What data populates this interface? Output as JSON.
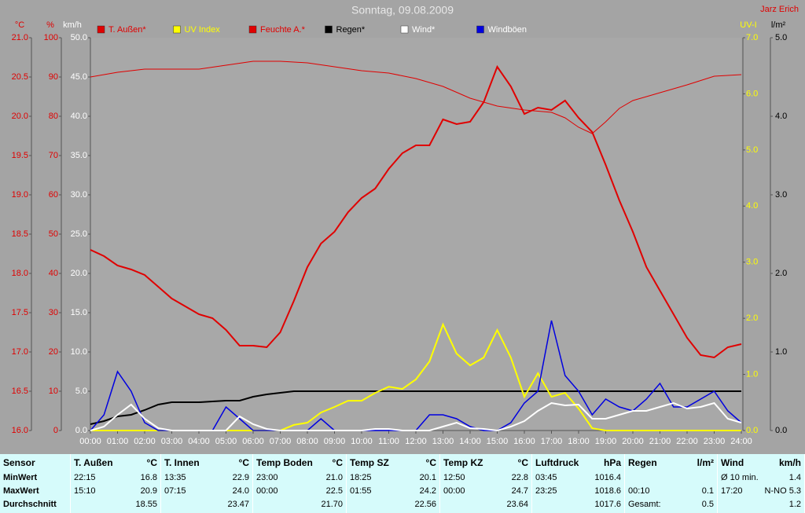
{
  "chart_data": {
    "type": "line",
    "title": "Sonntag, 09.08.2009",
    "subtitle": "Jarz Erich",
    "x": [
      0,
      0.5,
      1,
      1.5,
      2,
      2.5,
      3,
      3.5,
      4,
      4.5,
      5,
      5.5,
      6,
      6.5,
      7,
      7.5,
      8,
      8.5,
      9,
      9.5,
      10,
      10.5,
      11,
      11.5,
      12,
      12.5,
      13,
      13.5,
      14,
      14.5,
      15,
      15.5,
      16,
      16.5,
      17,
      17.5,
      18,
      18.5,
      19,
      19.5,
      20,
      20.5,
      21,
      21.5,
      22,
      22.5,
      23,
      23.5,
      24
    ],
    "xlim": [
      0,
      24
    ],
    "xticks": [
      {
        "value": 0,
        "label": "00:00"
      },
      {
        "value": 1,
        "label": "01:00"
      },
      {
        "value": 2,
        "label": "02:00"
      },
      {
        "value": 3,
        "label": "03:00"
      },
      {
        "value": 4,
        "label": "04:00"
      },
      {
        "value": 5,
        "label": "05:00"
      },
      {
        "value": 6,
        "label": "06:00"
      },
      {
        "value": 7,
        "label": "07:00"
      },
      {
        "value": 8,
        "label": "08:00"
      },
      {
        "value": 9,
        "label": "09:00"
      },
      {
        "value": 10,
        "label": "10:00"
      },
      {
        "value": 11,
        "label": "11:00"
      },
      {
        "value": 12,
        "label": "12:00"
      },
      {
        "value": 13,
        "label": "13:00"
      },
      {
        "value": 14,
        "label": "14:00"
      },
      {
        "value": 15,
        "label": "15:00"
      },
      {
        "value": 16,
        "label": "16:00"
      },
      {
        "value": 17,
        "label": "17:00"
      },
      {
        "value": 18,
        "label": "18:00"
      },
      {
        "value": 19,
        "label": "19:00"
      },
      {
        "value": 20,
        "label": "20:00"
      },
      {
        "value": 21,
        "label": "21:00"
      },
      {
        "value": 22,
        "label": "22:00"
      },
      {
        "value": 23,
        "label": "23:00"
      },
      {
        "value": 24,
        "label": "24:00"
      }
    ],
    "axes": [
      {
        "id": "temp",
        "label": "°C",
        "color": "#e00000",
        "lim": [
          16,
          21
        ],
        "ticks": [
          {
            "value": 16,
            "label": "16.0"
          },
          16.5,
          {
            "value": 17,
            "label": "17.0"
          },
          17.5,
          {
            "value": 18,
            "label": "18.0"
          },
          18.5,
          {
            "value": 19,
            "label": "19.0"
          },
          19.5,
          {
            "value": 20,
            "label": "20.0"
          },
          20.5,
          {
            "value": 21,
            "label": "21.0"
          }
        ]
      },
      {
        "id": "pct",
        "label": "%",
        "color": "#e00000",
        "lim": [
          0,
          100
        ],
        "ticks": [
          0,
          10,
          20,
          30,
          40,
          50,
          60,
          70,
          80,
          90,
          100
        ]
      },
      {
        "id": "kmh",
        "label": "km/h",
        "color": "#ffffff",
        "lim": [
          0,
          50
        ],
        "ticks": [
          {
            "value": 0,
            "label": "0.0"
          },
          {
            "value": 5,
            "label": "5.0"
          },
          {
            "value": 10,
            "label": "10.0"
          },
          {
            "value": 15,
            "label": "15.0"
          },
          {
            "value": 20,
            "label": "20.0"
          },
          {
            "value": 25,
            "label": "25.0"
          },
          {
            "value": 30,
            "label": "30.0"
          },
          {
            "value": 35,
            "label": "35.0"
          },
          {
            "value": 40,
            "label": "40.0"
          },
          {
            "value": 45,
            "label": "45.0"
          },
          {
            "value": 50,
            "label": "50.0"
          }
        ]
      },
      {
        "id": "uv",
        "label": "UV-I",
        "color": "#ffff00",
        "lim": [
          0,
          7
        ],
        "ticks": [
          {
            "value": 0,
            "label": "0.0"
          },
          {
            "value": 1,
            "label": "1.0"
          },
          {
            "value": 2,
            "label": "2.0"
          },
          {
            "value": 3,
            "label": "3.0"
          },
          {
            "value": 4,
            "label": "4.0"
          },
          {
            "value": 5,
            "label": "5.0"
          },
          {
            "value": 6,
            "label": "6.0"
          },
          {
            "value": 7,
            "label": "7.0"
          }
        ]
      },
      {
        "id": "rain",
        "label": "l/m²",
        "color": "#000000",
        "lim": [
          0,
          5
        ],
        "ticks": [
          {
            "value": 0,
            "label": "0.0"
          },
          {
            "value": 1,
            "label": "1.0"
          },
          {
            "value": 2,
            "label": "2.0"
          },
          {
            "value": 3,
            "label": "3.0"
          },
          {
            "value": 4,
            "label": "4.0"
          },
          {
            "value": 5,
            "label": "5.0"
          }
        ]
      }
    ],
    "series": [
      {
        "name": "T. Außen*",
        "color": "#e00000",
        "label_color": "#e00000",
        "axis": "temp",
        "width": 2,
        "values": [
          18.3,
          18.22,
          18.1,
          18.05,
          17.98,
          17.83,
          17.68,
          17.58,
          17.48,
          17.43,
          17.28,
          17.08,
          17.08,
          17.06,
          17.25,
          17.65,
          18.08,
          18.38,
          18.53,
          18.78,
          18.96,
          19.08,
          19.33,
          19.53,
          19.63,
          19.63,
          19.96,
          19.9,
          19.93,
          20.18,
          20.63,
          20.38,
          20.03,
          20.11,
          20.08,
          20.2,
          19.98,
          19.8,
          19.38,
          18.93,
          18.53,
          18.08,
          17.78,
          17.48,
          17.18,
          16.96,
          16.93,
          17.06,
          17.1
        ]
      },
      {
        "name": "UV Index",
        "color": "#ffff00",
        "label_color": "#ffff00",
        "axis": "uv",
        "width": 2,
        "values": [
          0,
          0,
          0,
          0,
          0,
          0,
          0,
          0,
          0,
          0,
          0,
          0,
          0,
          0,
          0,
          0.1,
          0.14,
          0.32,
          0.42,
          0.53,
          0.53,
          0.67,
          0.78,
          0.74,
          0.91,
          1.23,
          1.89,
          1.37,
          1.16,
          1.3,
          1.79,
          1.3,
          0.6,
          1.02,
          0.6,
          0.67,
          0.39,
          0.04,
          0,
          0,
          0,
          0,
          0,
          0,
          0,
          0,
          0,
          0,
          0
        ]
      },
      {
        "name": "Feuchte A.*",
        "color": "#e00000",
        "label_color": "#e00000",
        "axis": "pct",
        "width": 1,
        "values": [
          90,
          90.6,
          91.2,
          91.6,
          92,
          92,
          92,
          92,
          92,
          92.5,
          93,
          93.5,
          94,
          94,
          94,
          93.8,
          93.6,
          93.1,
          92.6,
          92.1,
          91.6,
          91.3,
          91,
          90.3,
          89.6,
          88.6,
          87.6,
          86.1,
          84.6,
          83.6,
          82.6,
          82.1,
          81.6,
          81.3,
          81,
          79.6,
          77.2,
          75.6,
          78.6,
          82,
          84,
          85,
          86,
          87,
          88,
          89.1,
          90.2,
          90.4,
          90.6
        ]
      },
      {
        "name": "Regen*",
        "color": "#000000",
        "label_color": "#000000",
        "axis": "rain",
        "width": 2,
        "values": [
          0.08,
          0.12,
          0.18,
          0.2,
          0.26,
          0.33,
          0.36,
          0.36,
          0.36,
          0.37,
          0.38,
          0.38,
          0.43,
          0.46,
          0.48,
          0.5,
          0.5,
          0.5,
          0.5,
          0.5,
          0.5,
          0.5,
          0.5,
          0.5,
          0.5,
          0.5,
          0.5,
          0.5,
          0.5,
          0.5,
          0.5,
          0.5,
          0.5,
          0.5,
          0.5,
          0.5,
          0.5,
          0.5,
          0.5,
          0.5,
          0.5,
          0.5,
          0.5,
          0.5,
          0.5,
          0.5,
          0.5,
          0.5,
          0.5
        ]
      },
      {
        "name": "Wind*",
        "color": "#ffffff",
        "label_color": "#ffffff",
        "axis": "kmh",
        "width": 2,
        "values": [
          0,
          0.5,
          2,
          3.3,
          1.5,
          0.3,
          0,
          0,
          0,
          0,
          0,
          1.8,
          0.8,
          0.2,
          0,
          0,
          0,
          0,
          0,
          0,
          0,
          0.2,
          0.2,
          0,
          0,
          0,
          0.5,
          1,
          0.3,
          0.2,
          0,
          0.5,
          1.2,
          2.5,
          3.5,
          3.2,
          3.3,
          1.5,
          1.5,
          2,
          2.5,
          2.5,
          3,
          3.5,
          2.8,
          3,
          3.5,
          1.5,
          1
        ]
      },
      {
        "name": "Windböen",
        "color": "#0000e0",
        "label_color": "#ffffff",
        "axis": "kmh",
        "width": 1.5,
        "values": [
          0,
          2,
          7.5,
          5,
          1,
          0,
          0,
          0,
          0,
          0,
          3,
          1.5,
          0,
          0,
          0,
          0,
          0,
          1.5,
          0,
          0,
          0,
          0,
          0,
          0,
          0,
          2,
          2,
          1.5,
          0.5,
          0,
          0,
          1,
          3.5,
          5,
          14,
          7,
          5,
          2,
          4,
          3,
          2.5,
          4,
          6,
          3,
          3,
          4,
          5,
          2.5,
          1
        ]
      }
    ]
  },
  "table": {
    "row_labels": [
      "Sensor",
      "MinWert",
      "MaxWert",
      "Durchschnitt"
    ],
    "columns": [
      {
        "name": "T. Außen",
        "unit": "°C",
        "cells": [
          [
            "22:15",
            "16.8"
          ],
          [
            "15:10",
            "20.9"
          ],
          [
            "18.55"
          ]
        ]
      },
      {
        "name": "T. Innen",
        "unit": "°C",
        "cells": [
          [
            "13:35",
            "22.9"
          ],
          [
            "07:15",
            "24.0"
          ],
          [
            "23.47"
          ]
        ]
      },
      {
        "name": "Temp Boden",
        "unit": "°C",
        "cells": [
          [
            "23:00",
            "21.0"
          ],
          [
            "00:00",
            "22.5"
          ],
          [
            "21.70"
          ]
        ]
      },
      {
        "name": "Temp SZ",
        "unit": "°C",
        "cells": [
          [
            "18:25",
            "20.1"
          ],
          [
            "01:55",
            "24.2"
          ],
          [
            "22.56"
          ]
        ]
      },
      {
        "name": "Temp KZ",
        "unit": "°C",
        "cells": [
          [
            "12:50",
            "22.8"
          ],
          [
            "00:00",
            "24.7"
          ],
          [
            "23.64"
          ]
        ]
      },
      {
        "name": "Luftdruck",
        "unit": "hPa",
        "cells": [
          [
            "03:45",
            "1016.4"
          ],
          [
            "23:25",
            "1018.6"
          ],
          [
            "1017.6"
          ]
        ]
      },
      {
        "name": "Regen",
        "unit": "l/m²",
        "cells": [
          [],
          [
            "00:10",
            "0.1"
          ],
          [
            "Gesamt:",
            "0.5"
          ]
        ]
      },
      {
        "name": "Wind",
        "unit": "km/h",
        "cells": [
          [
            "Ø 10 min.",
            "1.4"
          ],
          [
            "17:20",
            "N-NO 5.3"
          ],
          [
            "1.2"
          ]
        ]
      }
    ]
  }
}
